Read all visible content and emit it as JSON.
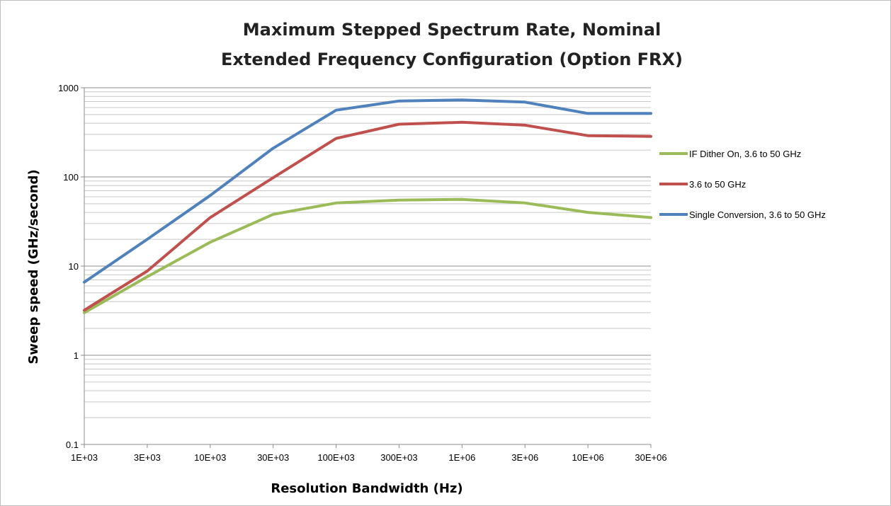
{
  "chart_data": {
    "type": "line",
    "title": "Maximum Stepped Spectrum Rate, Nominal",
    "subtitle": "Extended Frequency Configuration (Option FRX)",
    "xlabel": "Resolution Bandwidth (Hz)",
    "ylabel": "Sweep speed (GHz/second)",
    "x_scale": "categorical",
    "y_scale": "log",
    "ylim": [
      0.1,
      1000
    ],
    "grid": "on",
    "legend_position": "right",
    "categories": [
      "1E+03",
      "3E+03",
      "10E+03",
      "30E+03",
      "100E+03",
      "300E+03",
      "1E+06",
      "3E+06",
      "10E+06",
      "30E+06"
    ],
    "y_ticks": [
      "0.1",
      "1",
      "10",
      "100",
      "1000"
    ],
    "series": [
      {
        "name": "IF Dither On, 3.6 to 50 GHz",
        "color": "#9bbb59",
        "values": [
          3.0,
          7.6,
          18.5,
          38,
          51,
          55,
          56,
          51,
          40,
          35
        ]
      },
      {
        "name": "3.6 to 50 GHz",
        "color": "#c0504d",
        "values": [
          3.2,
          8.8,
          35,
          98,
          270,
          390,
          410,
          380,
          290,
          285
        ]
      },
      {
        "name": "Single Conversion, 3.6 to 50 GHz",
        "color": "#4f81bd",
        "values": [
          6.6,
          20,
          62,
          210,
          560,
          710,
          730,
          690,
          515,
          515
        ]
      }
    ]
  }
}
